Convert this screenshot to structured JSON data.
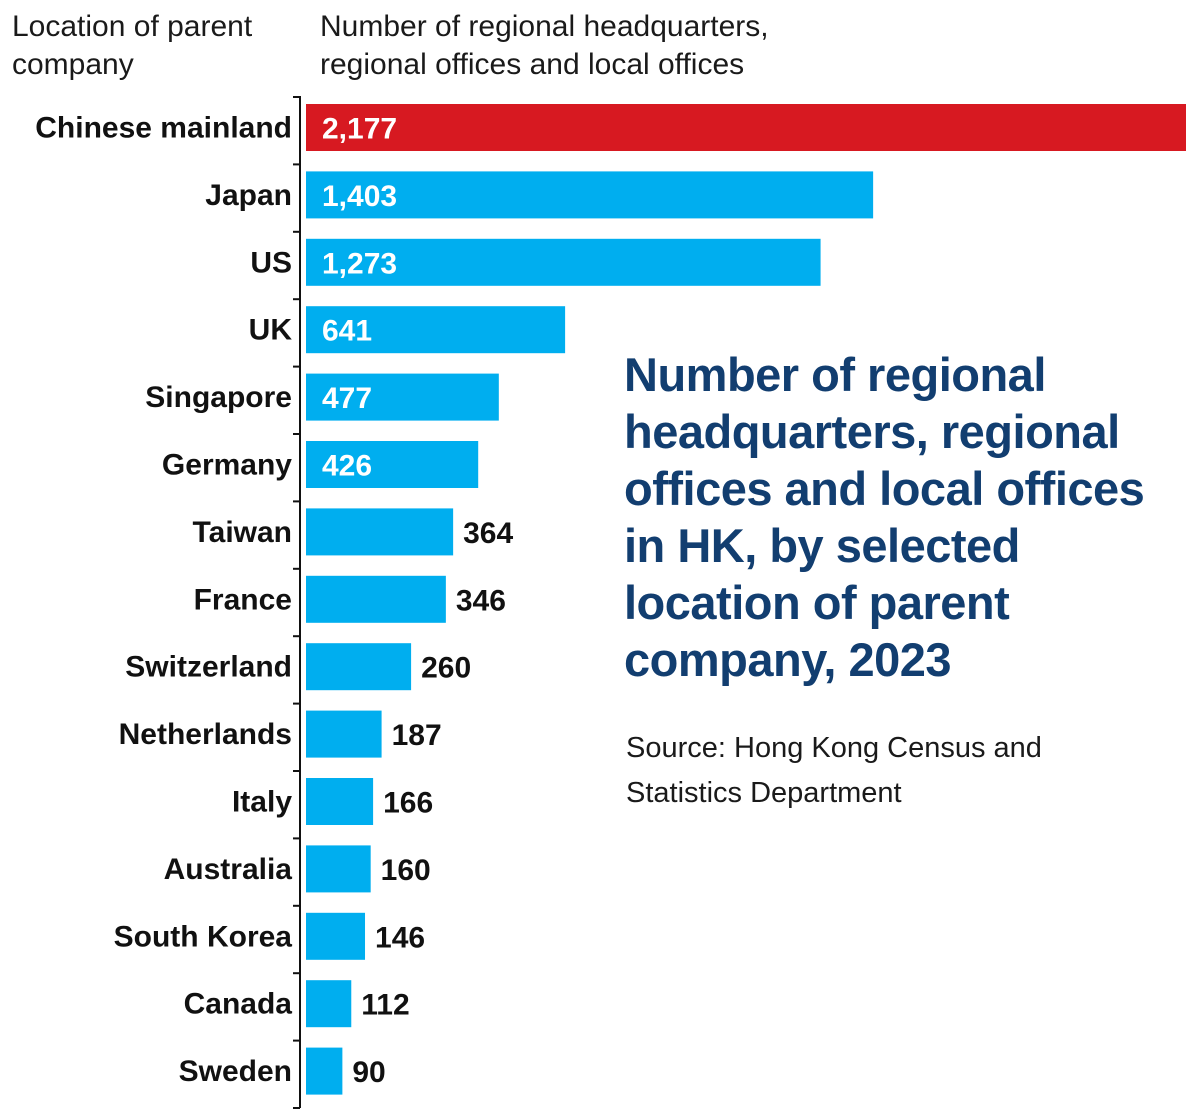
{
  "header": {
    "left": "Location of parent\ncompany",
    "right": "Number of regional headquarters,\nregional offices and local offices"
  },
  "title": "Number of regional headquarters, regional offices and local offices in HK, by selected location of parent company, 2023",
  "source": "Source: Hong Kong Census and Statistics Department",
  "colors": {
    "highlight": "#d71921",
    "bar": "#00aeef",
    "title": "#123e70",
    "inside_label": "#ffffff",
    "outside_label": "#111111"
  },
  "chart_data": {
    "type": "bar",
    "orientation": "horizontal",
    "title": "Number of regional headquarters, regional offices and local offices in HK, by selected location of parent company, 2023",
    "xlabel": "Number of regional headquarters, regional offices and local offices",
    "ylabel": "Location of parent company",
    "categories": [
      "Chinese mainland",
      "Japan",
      "US",
      "UK",
      "Singapore",
      "Germany",
      "Taiwan",
      "France",
      "Switzerland",
      "Netherlands",
      "Italy",
      "Australia",
      "South Korea",
      "Canada",
      "Sweden"
    ],
    "values": [
      2177,
      1403,
      1273,
      641,
      477,
      426,
      364,
      346,
      260,
      187,
      166,
      160,
      146,
      112,
      90
    ],
    "value_labels": [
      "2,177",
      "1,403",
      "1,273",
      "641",
      "477",
      "426",
      "364",
      "346",
      "260",
      "187",
      "166",
      "160",
      "146",
      "112",
      "90"
    ],
    "highlighted_category": "Chinese mainland",
    "xlim": [
      0,
      2177
    ],
    "grid": false,
    "legend": "none"
  }
}
